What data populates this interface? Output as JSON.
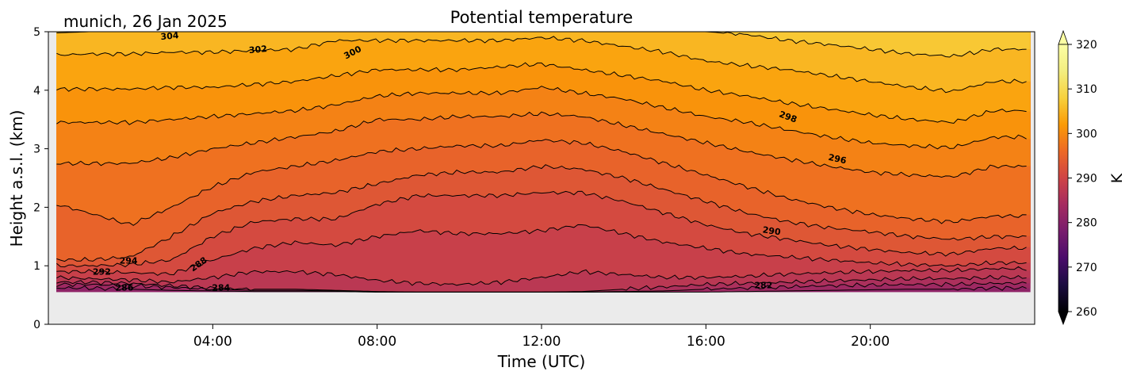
{
  "chart_data": {
    "type": "heatmap",
    "title": "Potential temperature",
    "subtitle": "munich, 26 Jan 2025",
    "xlabel": "Time (UTC)",
    "ylabel": "Height a.s.l. (km)",
    "x_unit": "hours UTC",
    "xlim": [
      0,
      24
    ],
    "ylim": [
      0,
      5
    ],
    "data_height_range_km": [
      0.55,
      5.0
    ],
    "x_ticks": [
      {
        "value": 4,
        "label": "04:00"
      },
      {
        "value": 8,
        "label": "08:00"
      },
      {
        "value": 12,
        "label": "12:00"
      },
      {
        "value": 16,
        "label": "16:00"
      },
      {
        "value": 20,
        "label": "20:00"
      }
    ],
    "y_ticks": [
      0,
      1,
      2,
      3,
      4,
      5
    ],
    "colorbar": {
      "label": "K",
      "colormap": "inferno",
      "range": [
        260,
        320
      ],
      "ticks": [
        260,
        270,
        280,
        290,
        300,
        310,
        320
      ],
      "extend": "both"
    },
    "missing_color": "#ebebeb",
    "contour_color": "#000000",
    "contour_hours": [
      0.2,
      1,
      2,
      3,
      4,
      5,
      6,
      7,
      8,
      9,
      10,
      11,
      12,
      13,
      14,
      15,
      16,
      17,
      18,
      19,
      20,
      21,
      22,
      23,
      23.8
    ],
    "contours": [
      {
        "level": 282,
        "heights_km": [
          0.62,
          0.62,
          0.6,
          0.58,
          0.57,
          0.56,
          0.56,
          0.56,
          0.55,
          0.55,
          0.55,
          0.55,
          0.55,
          0.55,
          0.55,
          0.55,
          0.55,
          0.56,
          0.57,
          0.58,
          0.59,
          0.6,
          0.6,
          0.62,
          0.62
        ]
      },
      {
        "level": 284,
        "heights_km": [
          0.68,
          0.68,
          0.66,
          0.63,
          0.6,
          0.58,
          0.58,
          0.57,
          0.55,
          0.55,
          0.55,
          0.55,
          0.55,
          0.55,
          0.56,
          0.57,
          0.6,
          0.62,
          0.64,
          0.66,
          0.67,
          0.68,
          0.68,
          0.7,
          0.7
        ]
      },
      {
        "level": 286,
        "heights_km": [
          0.72,
          0.72,
          0.7,
          0.66,
          0.62,
          0.6,
          0.6,
          0.58,
          0.56,
          0.55,
          0.55,
          0.55,
          0.55,
          0.56,
          0.6,
          0.64,
          0.68,
          0.7,
          0.72,
          0.74,
          0.76,
          0.78,
          0.78,
          0.8,
          0.8
        ]
      },
      {
        "level": 288,
        "heights_km": [
          0.8,
          0.78,
          0.76,
          0.72,
          0.8,
          0.9,
          0.9,
          0.85,
          0.75,
          0.7,
          0.68,
          0.72,
          0.8,
          0.9,
          0.85,
          0.8,
          0.8,
          0.82,
          0.86,
          0.88,
          0.9,
          0.92,
          0.92,
          0.95,
          0.95
        ]
      },
      {
        "level": 290,
        "heights_km": [
          0.9,
          0.9,
          0.88,
          0.86,
          1.1,
          1.3,
          1.4,
          1.35,
          1.5,
          1.6,
          1.55,
          1.55,
          1.6,
          1.7,
          1.55,
          1.4,
          1.3,
          1.2,
          1.15,
          1.1,
          1.05,
          1.02,
          1.0,
          1.05,
          1.05
        ]
      },
      {
        "level": 292,
        "heights_km": [
          1.0,
          1.0,
          1.02,
          1.1,
          1.5,
          1.75,
          1.8,
          1.8,
          2.05,
          2.2,
          2.2,
          2.2,
          2.25,
          2.25,
          2.1,
          1.9,
          1.7,
          1.55,
          1.45,
          1.35,
          1.28,
          1.22,
          1.2,
          1.3,
          1.3
        ]
      },
      {
        "level": 294,
        "heights_km": [
          1.1,
          1.1,
          1.15,
          1.5,
          1.9,
          2.1,
          2.2,
          2.25,
          2.4,
          2.55,
          2.6,
          2.6,
          2.7,
          2.65,
          2.5,
          2.3,
          2.1,
          1.9,
          1.75,
          1.65,
          1.58,
          1.5,
          1.45,
          1.5,
          1.5
        ]
      },
      {
        "level": 296,
        "heights_km": [
          2.05,
          1.9,
          1.7,
          2.0,
          2.35,
          2.6,
          2.7,
          2.8,
          2.95,
          3.0,
          3.05,
          3.05,
          3.15,
          3.1,
          2.95,
          2.75,
          2.55,
          2.35,
          2.15,
          2.0,
          1.88,
          1.8,
          1.75,
          1.85,
          1.85
        ]
      },
      {
        "level": 298,
        "heights_km": [
          2.75,
          2.75,
          2.75,
          2.85,
          3.0,
          3.1,
          3.2,
          3.3,
          3.5,
          3.5,
          3.55,
          3.55,
          3.6,
          3.55,
          3.4,
          3.25,
          3.1,
          2.95,
          2.82,
          2.7,
          2.6,
          2.55,
          2.52,
          2.7,
          2.7
        ]
      },
      {
        "level": 300,
        "heights_km": [
          3.45,
          3.45,
          3.45,
          3.5,
          3.55,
          3.6,
          3.65,
          3.75,
          3.9,
          3.95,
          3.95,
          3.95,
          4.05,
          3.95,
          3.85,
          3.7,
          3.55,
          3.45,
          3.32,
          3.2,
          3.1,
          3.05,
          3.02,
          3.2,
          3.2
        ]
      },
      {
        "level": 302,
        "heights_km": [
          4.02,
          4.02,
          4.02,
          4.05,
          4.05,
          4.1,
          4.15,
          4.25,
          4.35,
          4.35,
          4.35,
          4.4,
          4.45,
          4.35,
          4.25,
          4.15,
          4.0,
          3.9,
          3.78,
          3.68,
          3.58,
          3.5,
          3.45,
          3.65,
          3.65
        ]
      },
      {
        "level": 304,
        "heights_km": [
          4.6,
          4.62,
          4.62,
          4.65,
          4.65,
          4.68,
          4.7,
          4.85,
          4.85,
          4.85,
          4.85,
          4.85,
          4.9,
          4.85,
          4.75,
          4.65,
          4.5,
          4.42,
          4.35,
          4.25,
          4.15,
          4.05,
          3.98,
          4.15,
          4.15
        ]
      },
      {
        "level": 306,
        "heights_km": [
          4.98,
          5.0,
          5.0,
          5.0,
          5.0,
          5.0,
          5.0,
          5.0,
          5.0,
          5.0,
          5.0,
          5.0,
          5.0,
          5.0,
          5.0,
          5.0,
          5.0,
          4.95,
          4.85,
          4.78,
          4.7,
          4.62,
          4.58,
          4.7,
          4.7
        ]
      }
    ],
    "contour_labels": [
      {
        "text": "304",
        "x_hour": 2.95,
        "y_km": 4.93,
        "angle": -5
      },
      {
        "text": "302",
        "x_hour": 5.1,
        "y_km": 4.7,
        "angle": -5
      },
      {
        "text": "300",
        "x_hour": 7.4,
        "y_km": 4.65,
        "angle": -28
      },
      {
        "text": "298",
        "x_hour": 18.0,
        "y_km": 3.55,
        "angle": 20
      },
      {
        "text": "296",
        "x_hour": 19.2,
        "y_km": 2.83,
        "angle": 12
      },
      {
        "text": "294",
        "x_hour": 1.95,
        "y_km": 1.09,
        "angle": 0
      },
      {
        "text": "292",
        "x_hour": 1.3,
        "y_km": 0.9,
        "angle": 0
      },
      {
        "text": "290",
        "x_hour": 17.6,
        "y_km": 1.6,
        "angle": 8
      },
      {
        "text": "288",
        "x_hour": 3.65,
        "y_km": 1.03,
        "angle": -35
      },
      {
        "text": "286",
        "x_hour": 1.85,
        "y_km": 0.63,
        "angle": 0
      },
      {
        "text": "284",
        "x_hour": 4.2,
        "y_km": 0.63,
        "angle": 0
      },
      {
        "text": "282",
        "x_hour": 17.4,
        "y_km": 0.67,
        "angle": 0
      }
    ]
  }
}
